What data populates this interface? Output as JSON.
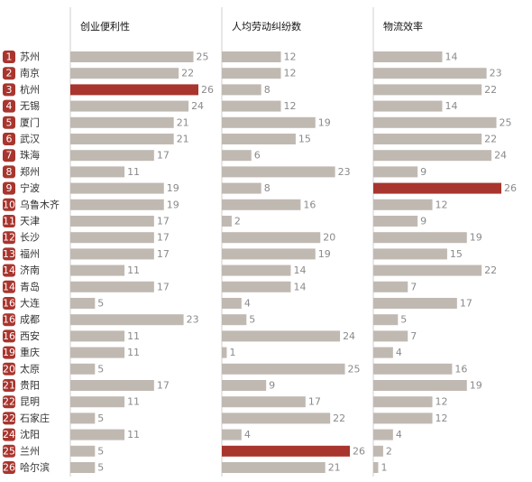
{
  "chart_data": {
    "type": "bar",
    "ranks": [
      1,
      2,
      3,
      4,
      5,
      6,
      7,
      8,
      9,
      10,
      11,
      12,
      13,
      14,
      14,
      16,
      16,
      16,
      19,
      20,
      21,
      22,
      22,
      24,
      25,
      26
    ],
    "categories": [
      "苏州",
      "南京",
      "杭州",
      "无锡",
      "厦门",
      "武汉",
      "珠海",
      "郑州",
      "宁波",
      "乌鲁木齐",
      "天津",
      "长沙",
      "福州",
      "济南",
      "青岛",
      "大连",
      "成都",
      "西安",
      "重庆",
      "太原",
      "贵阳",
      "昆明",
      "石家庄",
      "沈阳",
      "兰州",
      "哈尔滨"
    ],
    "xlim": [
      0,
      26
    ],
    "color": "#c0b9b2",
    "highlight_color": "#a8352e",
    "series": [
      {
        "name": "创业便利性",
        "values": [
          25,
          22,
          26,
          24,
          21,
          21,
          17,
          11,
          19,
          19,
          17,
          17,
          17,
          11,
          17,
          5,
          23,
          11,
          11,
          5,
          17,
          11,
          5,
          11,
          5,
          5
        ]
      },
      {
        "name": "人均劳动纠纷数",
        "values": [
          12,
          12,
          8,
          12,
          19,
          15,
          6,
          23,
          8,
          16,
          2,
          20,
          19,
          14,
          14,
          4,
          5,
          24,
          1,
          25,
          9,
          17,
          22,
          4,
          26,
          21
        ]
      },
      {
        "name": "物流效率",
        "values": [
          14,
          23,
          22,
          14,
          25,
          22,
          24,
          9,
          26,
          12,
          9,
          19,
          15,
          22,
          7,
          17,
          5,
          7,
          4,
          16,
          19,
          12,
          12,
          4,
          2,
          1
        ]
      }
    ]
  }
}
